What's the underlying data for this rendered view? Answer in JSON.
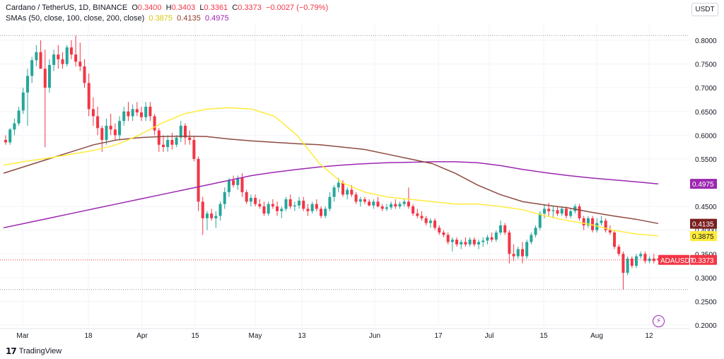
{
  "header": {
    "symbol": "Cardano / TetherUS, 1D, BINANCE",
    "o_label": "O",
    "o_value": "0.3400",
    "h_label": "H",
    "h_value": "0.3403",
    "l_label": "L",
    "l_value": "0.3361",
    "c_label": "C",
    "c_value": "0.3373",
    "change": "−0.0027 (−0.79%)",
    "sma_label": "SMAs (50, close, 100, close, 200, close)",
    "sma50": "0.3875",
    "sma100": "0.4135",
    "sma200": "0.4975"
  },
  "currency_button": "USDT",
  "branding": {
    "logo_text": "TradingView"
  },
  "colors": {
    "up": "#26a69a",
    "down": "#f23645",
    "sma50": "#ffeb3b",
    "sma100": "#8d4b40",
    "sma200": "#9c27b0",
    "price_line": "#f23645",
    "grid": "#f0f3fa",
    "text": "#131722"
  },
  "icons": {
    "alert": "lightning-bolt-icon",
    "logo": "tradingview-logo-icon"
  },
  "chart_data": {
    "type": "candlestick",
    "ticker": "ADAUSDT",
    "x_ticks": [
      "Mar",
      "18",
      "Apr",
      "15",
      "May",
      "13",
      "Jun",
      "17",
      "Jul",
      "15",
      "Aug",
      "12"
    ],
    "y_ticks": [
      "0.8000",
      "0.7500",
      "0.7000",
      "0.6500",
      "0.6000",
      "0.5500",
      "0.4500",
      "0.4000",
      "0.3500",
      "0.3000",
      "0.2500",
      "0.2000"
    ],
    "ylim": [
      0.19,
      0.82
    ],
    "last_price": 0.3373,
    "price_labels": [
      {
        "name": "SMA 200",
        "value": 0.4975,
        "text": "0.4975"
      },
      {
        "name": "SMA 100",
        "value": 0.4135,
        "text": "0.4135"
      },
      {
        "name": "SMA 50",
        "value": 0.3875,
        "text": "0.3875"
      },
      {
        "name": "ADAUSDT",
        "value": 0.3373,
        "text": "0.3373"
      }
    ],
    "dotted_levels": [
      0.81,
      0.275
    ],
    "candles_ohlc": [
      [
        0.59,
        0.6,
        0.58,
        0.585
      ],
      [
        0.585,
        0.615,
        0.58,
        0.612
      ],
      [
        0.612,
        0.635,
        0.6,
        0.625
      ],
      [
        0.625,
        0.66,
        0.62,
        0.652
      ],
      [
        0.652,
        0.7,
        0.645,
        0.69
      ],
      [
        0.69,
        0.74,
        0.62,
        0.725
      ],
      [
        0.725,
        0.765,
        0.71,
        0.758
      ],
      [
        0.758,
        0.79,
        0.745,
        0.775
      ],
      [
        0.775,
        0.8,
        0.76,
        0.74
      ],
      [
        0.74,
        0.78,
        0.575,
        0.7
      ],
      [
        0.7,
        0.76,
        0.69,
        0.748
      ],
      [
        0.748,
        0.78,
        0.735,
        0.77
      ],
      [
        0.77,
        0.79,
        0.74,
        0.76
      ],
      [
        0.76,
        0.775,
        0.74,
        0.75
      ],
      [
        0.75,
        0.79,
        0.745,
        0.785
      ],
      [
        0.785,
        0.8,
        0.76,
        0.77
      ],
      [
        0.77,
        0.81,
        0.745,
        0.755
      ],
      [
        0.755,
        0.795,
        0.735,
        0.745
      ],
      [
        0.745,
        0.76,
        0.7,
        0.71
      ],
      [
        0.71,
        0.73,
        0.64,
        0.655
      ],
      [
        0.655,
        0.68,
        0.62,
        0.64
      ],
      [
        0.64,
        0.66,
        0.6,
        0.615
      ],
      [
        0.615,
        0.62,
        0.565,
        0.59
      ],
      [
        0.59,
        0.635,
        0.58,
        0.62
      ],
      [
        0.62,
        0.645,
        0.6,
        0.612
      ],
      [
        0.612,
        0.625,
        0.59,
        0.6
      ],
      [
        0.6,
        0.64,
        0.59,
        0.63
      ],
      [
        0.63,
        0.66,
        0.62,
        0.65
      ],
      [
        0.65,
        0.67,
        0.63,
        0.64
      ],
      [
        0.64,
        0.665,
        0.63,
        0.655
      ],
      [
        0.655,
        0.67,
        0.64,
        0.648
      ],
      [
        0.648,
        0.66,
        0.63,
        0.638
      ],
      [
        0.638,
        0.67,
        0.63,
        0.66
      ],
      [
        0.66,
        0.67,
        0.63,
        0.64
      ],
      [
        0.64,
        0.645,
        0.6,
        0.61
      ],
      [
        0.61,
        0.615,
        0.565,
        0.58
      ],
      [
        0.58,
        0.6,
        0.565,
        0.575
      ],
      [
        0.575,
        0.6,
        0.565,
        0.59
      ],
      [
        0.59,
        0.605,
        0.57,
        0.58
      ],
      [
        0.58,
        0.6,
        0.575,
        0.595
      ],
      [
        0.595,
        0.63,
        0.585,
        0.62
      ],
      [
        0.62,
        0.625,
        0.58,
        0.595
      ],
      [
        0.595,
        0.61,
        0.58,
        0.59
      ],
      [
        0.59,
        0.598,
        0.545,
        0.55
      ],
      [
        0.55,
        0.555,
        0.44,
        0.46
      ],
      [
        0.46,
        0.47,
        0.39,
        0.425
      ],
      [
        0.425,
        0.44,
        0.4,
        0.435
      ],
      [
        0.435,
        0.445,
        0.42,
        0.425
      ],
      [
        0.425,
        0.44,
        0.405,
        0.43
      ],
      [
        0.43,
        0.46,
        0.42,
        0.455
      ],
      [
        0.455,
        0.49,
        0.445,
        0.48
      ],
      [
        0.48,
        0.51,
        0.47,
        0.505
      ],
      [
        0.505,
        0.515,
        0.49,
        0.495
      ],
      [
        0.495,
        0.515,
        0.485,
        0.51
      ],
      [
        0.51,
        0.52,
        0.47,
        0.48
      ],
      [
        0.48,
        0.485,
        0.455,
        0.46
      ],
      [
        0.46,
        0.475,
        0.45,
        0.468
      ],
      [
        0.468,
        0.475,
        0.45,
        0.455
      ],
      [
        0.455,
        0.465,
        0.445,
        0.45
      ],
      [
        0.45,
        0.46,
        0.43,
        0.435
      ],
      [
        0.435,
        0.46,
        0.43,
        0.455
      ],
      [
        0.455,
        0.465,
        0.445,
        0.45
      ],
      [
        0.45,
        0.46,
        0.43,
        0.44
      ],
      [
        0.44,
        0.45,
        0.425,
        0.445
      ],
      [
        0.445,
        0.47,
        0.44,
        0.465
      ],
      [
        0.465,
        0.475,
        0.445,
        0.45
      ],
      [
        0.45,
        0.46,
        0.44,
        0.452
      ],
      [
        0.452,
        0.47,
        0.445,
        0.462
      ],
      [
        0.462,
        0.47,
        0.44,
        0.445
      ],
      [
        0.445,
        0.455,
        0.43,
        0.44
      ],
      [
        0.44,
        0.46,
        0.435,
        0.455
      ],
      [
        0.455,
        0.465,
        0.44,
        0.445
      ],
      [
        0.445,
        0.45,
        0.425,
        0.43
      ],
      [
        0.43,
        0.45,
        0.425,
        0.445
      ],
      [
        0.445,
        0.48,
        0.44,
        0.47
      ],
      [
        0.47,
        0.495,
        0.46,
        0.49
      ],
      [
        0.49,
        0.51,
        0.48,
        0.5
      ],
      [
        0.5,
        0.505,
        0.47,
        0.475
      ],
      [
        0.475,
        0.49,
        0.465,
        0.485
      ],
      [
        0.485,
        0.495,
        0.47,
        0.475
      ],
      [
        0.475,
        0.48,
        0.455,
        0.46
      ],
      [
        0.46,
        0.47,
        0.45,
        0.465
      ],
      [
        0.465,
        0.47,
        0.455,
        0.46
      ],
      [
        0.46,
        0.465,
        0.45,
        0.452
      ],
      [
        0.452,
        0.465,
        0.445,
        0.46
      ],
      [
        0.46,
        0.47,
        0.448,
        0.45
      ],
      [
        0.45,
        0.455,
        0.44,
        0.445
      ],
      [
        0.445,
        0.455,
        0.44,
        0.448
      ],
      [
        0.448,
        0.46,
        0.443,
        0.455
      ],
      [
        0.455,
        0.465,
        0.445,
        0.45
      ],
      [
        0.45,
        0.46,
        0.445,
        0.455
      ],
      [
        0.455,
        0.465,
        0.45,
        0.46
      ],
      [
        0.46,
        0.49,
        0.445,
        0.45
      ],
      [
        0.45,
        0.455,
        0.43,
        0.435
      ],
      [
        0.435,
        0.445,
        0.425,
        0.43
      ],
      [
        0.43,
        0.44,
        0.42,
        0.425
      ],
      [
        0.425,
        0.43,
        0.41,
        0.415
      ],
      [
        0.415,
        0.425,
        0.405,
        0.42
      ],
      [
        0.42,
        0.425,
        0.4,
        0.405
      ],
      [
        0.405,
        0.41,
        0.39,
        0.395
      ],
      [
        0.395,
        0.4,
        0.385,
        0.39
      ],
      [
        0.39,
        0.395,
        0.37,
        0.375
      ],
      [
        0.375,
        0.385,
        0.355,
        0.38
      ],
      [
        0.38,
        0.385,
        0.365,
        0.37
      ],
      [
        0.37,
        0.38,
        0.36,
        0.375
      ],
      [
        0.375,
        0.385,
        0.365,
        0.37
      ],
      [
        0.37,
        0.385,
        0.365,
        0.38
      ],
      [
        0.38,
        0.385,
        0.365,
        0.37
      ],
      [
        0.37,
        0.38,
        0.36,
        0.375
      ],
      [
        0.375,
        0.385,
        0.365,
        0.378
      ],
      [
        0.378,
        0.39,
        0.37,
        0.385
      ],
      [
        0.385,
        0.395,
        0.375,
        0.38
      ],
      [
        0.38,
        0.4,
        0.375,
        0.395
      ],
      [
        0.395,
        0.42,
        0.39,
        0.41
      ],
      [
        0.41,
        0.415,
        0.39,
        0.395
      ],
      [
        0.395,
        0.4,
        0.33,
        0.35
      ],
      [
        0.35,
        0.37,
        0.335,
        0.345
      ],
      [
        0.345,
        0.365,
        0.34,
        0.36
      ],
      [
        0.36,
        0.375,
        0.33,
        0.345
      ],
      [
        0.345,
        0.38,
        0.34,
        0.375
      ],
      [
        0.375,
        0.395,
        0.37,
        0.39
      ],
      [
        0.39,
        0.41,
        0.385,
        0.405
      ],
      [
        0.405,
        0.44,
        0.4,
        0.435
      ],
      [
        0.435,
        0.455,
        0.425,
        0.445
      ],
      [
        0.445,
        0.458,
        0.43,
        0.44
      ],
      [
        0.44,
        0.45,
        0.425,
        0.442
      ],
      [
        0.442,
        0.45,
        0.43,
        0.435
      ],
      [
        0.435,
        0.45,
        0.43,
        0.445
      ],
      [
        0.445,
        0.45,
        0.425,
        0.43
      ],
      [
        0.43,
        0.445,
        0.425,
        0.44
      ],
      [
        0.44,
        0.455,
        0.435,
        0.45
      ],
      [
        0.45,
        0.455,
        0.42,
        0.425
      ],
      [
        0.425,
        0.43,
        0.4,
        0.41
      ],
      [
        0.41,
        0.43,
        0.405,
        0.425
      ],
      [
        0.425,
        0.43,
        0.395,
        0.4
      ],
      [
        0.4,
        0.425,
        0.395,
        0.415
      ],
      [
        0.415,
        0.43,
        0.41,
        0.42
      ],
      [
        0.42,
        0.425,
        0.395,
        0.4
      ],
      [
        0.4,
        0.41,
        0.39,
        0.395
      ],
      [
        0.395,
        0.4,
        0.36,
        0.365
      ],
      [
        0.365,
        0.37,
        0.345,
        0.35
      ],
      [
        0.35,
        0.355,
        0.275,
        0.31
      ],
      [
        0.31,
        0.345,
        0.305,
        0.34
      ],
      [
        0.34,
        0.345,
        0.32,
        0.325
      ],
      [
        0.325,
        0.35,
        0.32,
        0.345
      ],
      [
        0.345,
        0.355,
        0.34,
        0.35
      ],
      [
        0.35,
        0.355,
        0.33,
        0.335
      ],
      [
        0.335,
        0.345,
        0.33,
        0.34
      ],
      [
        0.34,
        0.35,
        0.33,
        0.335
      ],
      [
        0.34,
        0.3403,
        0.3361,
        0.3373
      ]
    ],
    "sma50_series": [
      0.537,
      0.545,
      0.552,
      0.56,
      0.568,
      0.58,
      0.6,
      0.625,
      0.645,
      0.655,
      0.658,
      0.655,
      0.64,
      0.6,
      0.54,
      0.5,
      0.48,
      0.47,
      0.465,
      0.46,
      0.455,
      0.455,
      0.45,
      0.443,
      0.43,
      0.42,
      0.412,
      0.4,
      0.392,
      0.388
    ],
    "sma100_series": [
      0.52,
      0.535,
      0.55,
      0.565,
      0.58,
      0.59,
      0.595,
      0.597,
      0.598,
      0.597,
      0.592,
      0.588,
      0.585,
      0.582,
      0.58,
      0.575,
      0.57,
      0.56,
      0.55,
      0.54,
      0.52,
      0.495,
      0.475,
      0.46,
      0.453,
      0.447,
      0.438,
      0.43,
      0.423,
      0.414
    ],
    "sma200_series": [
      0.405,
      0.415,
      0.425,
      0.435,
      0.445,
      0.455,
      0.465,
      0.475,
      0.485,
      0.495,
      0.505,
      0.515,
      0.522,
      0.528,
      0.533,
      0.537,
      0.54,
      0.542,
      0.543,
      0.544,
      0.544,
      0.542,
      0.536,
      0.528,
      0.521,
      0.515,
      0.51,
      0.506,
      0.502,
      0.4975
    ]
  }
}
